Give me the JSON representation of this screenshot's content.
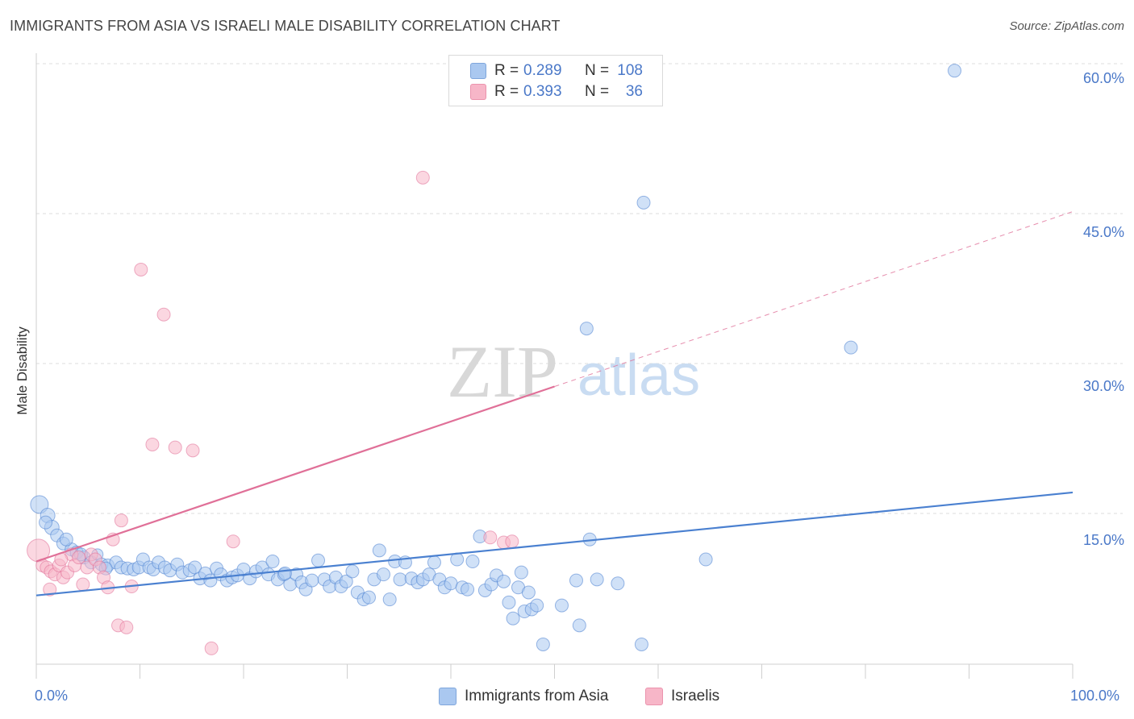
{
  "title": "IMMIGRANTS FROM ASIA VS ISRAELI MALE DISABILITY CORRELATION CHART",
  "source": "Source: ZipAtlas.com",
  "watermark": {
    "zip": "ZIP",
    "atlas": "atlas"
  },
  "legend": {
    "rows": [
      {
        "r_label": "R =",
        "r_value": "0.289",
        "n_label": "N =",
        "n_value": "108",
        "color": "#aac8f0"
      },
      {
        "r_label": "R =",
        "r_value": "0.393",
        "n_label": "N =",
        "n_value": "36",
        "color": "#f7b6c8"
      }
    ]
  },
  "bottom_legend": [
    {
      "label": "Immigrants from Asia",
      "color": "#aac8f0"
    },
    {
      "label": "Israelis",
      "color": "#f7b6c8"
    }
  ],
  "chart_data": {
    "type": "scatter",
    "title": "IMMIGRANTS FROM ASIA VS ISRAELI MALE DISABILITY CORRELATION CHART",
    "xlabel": "",
    "ylabel": "Male Disability",
    "xlim": [
      0,
      100
    ],
    "ylim": [
      0,
      60
    ],
    "x_tick_labels": [
      "0.0%",
      "100.0%"
    ],
    "y_ticks": [
      15,
      30,
      45,
      60
    ],
    "y_tick_labels": [
      "15.0%",
      "30.0%",
      "45.0%",
      "60.0%"
    ],
    "grid": true,
    "legend_position": "top-center",
    "series": [
      {
        "name": "Immigrants from Asia",
        "color": "#4a80d0",
        "fill": "#aac8f0",
        "trend": {
          "x0": 0,
          "y0": 6.8,
          "x1": 100,
          "y1": 17.1,
          "dashed_from": null
        },
        "points": [
          [
            0.3,
            15.9,
            11
          ],
          [
            1.1,
            14.8,
            9
          ],
          [
            1.5,
            13.6,
            9
          ],
          [
            2.0,
            12.8,
            8
          ],
          [
            2.6,
            12.0,
            8
          ],
          [
            3.4,
            11.4,
            8
          ],
          [
            3.9,
            11.1,
            8
          ],
          [
            4.6,
            10.6,
            8
          ],
          [
            5.3,
            10.1,
            8
          ],
          [
            5.9,
            10.9,
            7
          ],
          [
            6.3,
            9.9,
            8
          ],
          [
            6.9,
            9.8,
            8
          ],
          [
            7.7,
            10.1,
            8
          ],
          [
            8.2,
            9.6,
            8
          ],
          [
            8.8,
            9.5,
            8
          ],
          [
            9.4,
            9.4,
            8
          ],
          [
            9.9,
            9.6,
            8
          ],
          [
            10.3,
            10.4,
            8
          ],
          [
            10.9,
            9.6,
            8
          ],
          [
            11.3,
            9.4,
            8
          ],
          [
            11.8,
            10.1,
            8
          ],
          [
            12.4,
            9.6,
            8
          ],
          [
            12.9,
            9.3,
            8
          ],
          [
            13.6,
            9.9,
            8
          ],
          [
            14.1,
            9.1,
            8
          ],
          [
            14.8,
            9.3,
            8
          ],
          [
            15.3,
            9.6,
            8
          ],
          [
            15.8,
            8.5,
            8
          ],
          [
            16.3,
            9.0,
            8
          ],
          [
            16.8,
            8.3,
            8
          ],
          [
            17.4,
            9.5,
            8
          ],
          [
            17.8,
            8.9,
            8
          ],
          [
            18.4,
            8.3,
            8
          ],
          [
            18.9,
            8.6,
            8
          ],
          [
            19.4,
            8.8,
            8
          ],
          [
            20.0,
            9.4,
            8
          ],
          [
            20.6,
            8.5,
            8
          ],
          [
            21.2,
            9.2,
            8
          ],
          [
            21.8,
            9.6,
            8
          ],
          [
            22.4,
            8.9,
            8
          ],
          [
            22.8,
            10.2,
            8
          ],
          [
            23.3,
            8.4,
            8
          ],
          [
            23.9,
            8.9,
            8
          ],
          [
            24.5,
            7.9,
            8
          ],
          [
            25.1,
            8.9,
            8
          ],
          [
            25.6,
            8.1,
            8
          ],
          [
            26.0,
            7.4,
            8
          ],
          [
            26.6,
            8.3,
            8
          ],
          [
            27.2,
            10.3,
            8
          ],
          [
            27.8,
            8.4,
            8
          ],
          [
            28.3,
            7.7,
            8
          ],
          [
            28.9,
            8.6,
            8
          ],
          [
            29.4,
            7.7,
            8
          ],
          [
            29.9,
            8.2,
            8
          ],
          [
            30.5,
            9.2,
            8
          ],
          [
            31.0,
            7.1,
            8
          ],
          [
            31.6,
            6.4,
            8
          ],
          [
            32.1,
            6.6,
            8
          ],
          [
            32.6,
            8.4,
            8
          ],
          [
            33.1,
            11.3,
            8
          ],
          [
            33.5,
            8.9,
            8
          ],
          [
            34.1,
            6.4,
            8
          ],
          [
            34.6,
            10.2,
            8
          ],
          [
            35.1,
            8.4,
            8
          ],
          [
            35.6,
            10.1,
            8
          ],
          [
            36.2,
            8.5,
            8
          ],
          [
            36.8,
            8.1,
            8
          ],
          [
            37.3,
            8.4,
            8
          ],
          [
            37.9,
            8.9,
            8
          ],
          [
            38.4,
            10.1,
            8
          ],
          [
            38.9,
            8.4,
            8
          ],
          [
            39.4,
            7.6,
            8
          ],
          [
            40.0,
            8.0,
            8
          ],
          [
            40.6,
            10.4,
            8
          ],
          [
            41.1,
            7.6,
            8
          ],
          [
            41.6,
            7.4,
            8
          ],
          [
            42.1,
            10.2,
            8
          ],
          [
            42.8,
            12.7,
            8
          ],
          [
            43.3,
            7.3,
            8
          ],
          [
            43.9,
            7.9,
            8
          ],
          [
            44.4,
            8.8,
            8
          ],
          [
            45.1,
            8.2,
            8
          ],
          [
            45.6,
            6.1,
            8
          ],
          [
            46.0,
            4.5,
            8
          ],
          [
            46.5,
            7.6,
            8
          ],
          [
            46.8,
            9.1,
            8
          ],
          [
            47.1,
            5.2,
            8
          ],
          [
            47.8,
            5.4,
            8
          ],
          [
            47.5,
            7.1,
            8
          ],
          [
            48.3,
            5.8,
            8
          ],
          [
            48.9,
            1.9,
            8
          ],
          [
            50.7,
            5.8,
            8
          ],
          [
            52.1,
            8.3,
            8
          ],
          [
            52.4,
            3.8,
            8
          ],
          [
            53.1,
            33.5,
            8
          ],
          [
            53.4,
            12.4,
            8
          ],
          [
            54.1,
            8.4,
            8
          ],
          [
            56.1,
            8.0,
            8
          ],
          [
            58.6,
            46.1,
            8
          ],
          [
            58.4,
            1.9,
            8
          ],
          [
            64.6,
            10.4,
            8
          ],
          [
            78.6,
            31.6,
            8
          ],
          [
            88.6,
            59.3,
            8
          ],
          [
            0.9,
            14.1,
            8
          ],
          [
            2.9,
            12.4,
            8
          ],
          [
            4.3,
            10.9,
            8
          ],
          [
            6.7,
            9.5,
            8
          ],
          [
            24.0,
            9.0,
            8
          ]
        ]
      },
      {
        "name": "Israelis",
        "color": "#e07098",
        "fill": "#f7b6c8",
        "trend": {
          "x0": 0,
          "y0": 10.2,
          "x1": 100,
          "y1": 45.2,
          "dashed_from": 50
        },
        "points": [
          [
            0.2,
            11.3,
            14
          ],
          [
            0.6,
            9.8,
            8
          ],
          [
            1.0,
            9.6,
            8
          ],
          [
            1.4,
            9.2,
            8
          ],
          [
            1.8,
            8.9,
            8
          ],
          [
            2.2,
            9.8,
            8
          ],
          [
            2.6,
            8.6,
            8
          ],
          [
            3.0,
            9.1,
            8
          ],
          [
            3.4,
            10.9,
            8
          ],
          [
            3.7,
            9.8,
            8
          ],
          [
            4.1,
            10.6,
            8
          ],
          [
            4.5,
            7.9,
            8
          ],
          [
            4.9,
            9.6,
            8
          ],
          [
            5.3,
            10.9,
            8
          ],
          [
            5.7,
            10.4,
            8
          ],
          [
            6.1,
            9.6,
            8
          ],
          [
            6.5,
            8.6,
            8
          ],
          [
            6.9,
            7.6,
            8
          ],
          [
            7.4,
            12.4,
            8
          ],
          [
            7.9,
            3.8,
            8
          ],
          [
            8.2,
            14.3,
            8
          ],
          [
            8.7,
            3.6,
            8
          ],
          [
            9.2,
            7.7,
            8
          ],
          [
            10.1,
            39.4,
            8
          ],
          [
            11.2,
            21.9,
            8
          ],
          [
            12.3,
            34.9,
            8
          ],
          [
            13.4,
            21.6,
            8
          ],
          [
            15.1,
            21.3,
            8
          ],
          [
            16.9,
            1.5,
            8
          ],
          [
            19.0,
            12.2,
            8
          ],
          [
            37.3,
            48.6,
            8
          ],
          [
            43.8,
            12.6,
            8
          ],
          [
            45.1,
            12.1,
            8
          ],
          [
            45.9,
            12.2,
            8
          ],
          [
            1.3,
            7.4,
            8
          ],
          [
            2.4,
            10.4,
            8
          ]
        ]
      }
    ]
  }
}
